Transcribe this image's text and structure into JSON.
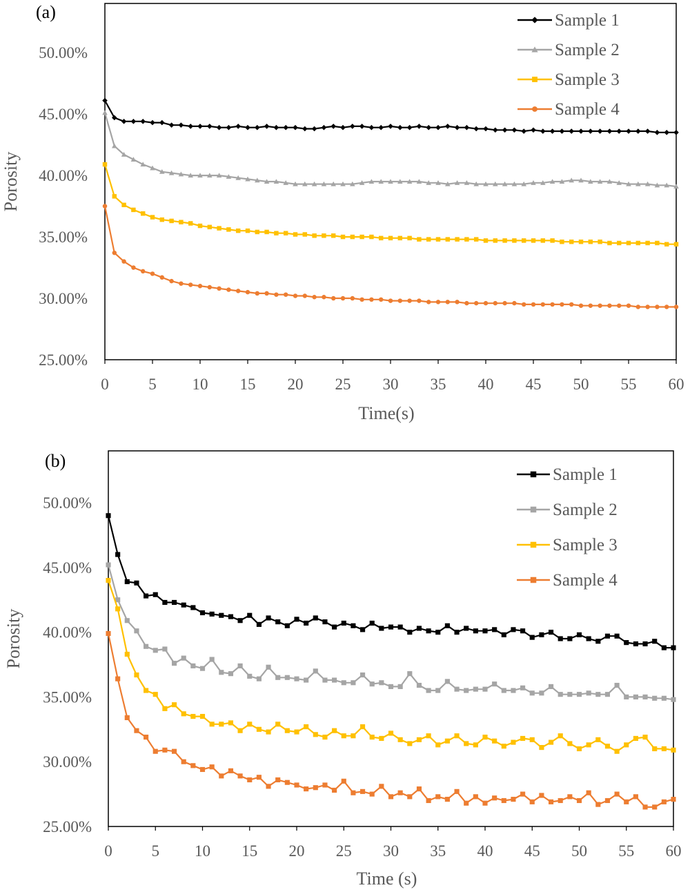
{
  "chart_data": [
    {
      "type": "line",
      "panel_label": "(a)",
      "xlabel": "Time(s)",
      "ylabel": "Porosity",
      "xlim": [
        0,
        60
      ],
      "ylim": [
        0.25,
        0.54
      ],
      "x_ticks": [
        "0",
        "5",
        "10",
        "15",
        "20",
        "25",
        "30",
        "35",
        "40",
        "45",
        "50",
        "55",
        "60"
      ],
      "y_ticks": [
        "25.00%",
        "30.00%",
        "35.00%",
        "40.00%",
        "45.00%",
        "50.00%"
      ],
      "legend_position": "top-right",
      "grid": false,
      "x": [
        0,
        1,
        2,
        3,
        4,
        5,
        6,
        7,
        8,
        9,
        10,
        11,
        12,
        13,
        14,
        15,
        16,
        17,
        18,
        19,
        20,
        21,
        22,
        23,
        24,
        25,
        26,
        27,
        28,
        29,
        30,
        31,
        32,
        33,
        34,
        35,
        36,
        37,
        38,
        39,
        40,
        41,
        42,
        43,
        44,
        45,
        46,
        47,
        48,
        49,
        50,
        51,
        52,
        53,
        54,
        55,
        56,
        57,
        58,
        59,
        60
      ],
      "series": [
        {
          "name": "Sample 1",
          "color": "#000000",
          "marker": "diamond",
          "values": [
            0.461,
            0.447,
            0.444,
            0.444,
            0.444,
            0.443,
            0.443,
            0.441,
            0.441,
            0.44,
            0.44,
            0.44,
            0.439,
            0.439,
            0.44,
            0.439,
            0.439,
            0.44,
            0.439,
            0.439,
            0.439,
            0.438,
            0.438,
            0.439,
            0.44,
            0.439,
            0.44,
            0.44,
            0.439,
            0.439,
            0.44,
            0.439,
            0.439,
            0.44,
            0.439,
            0.439,
            0.44,
            0.439,
            0.439,
            0.438,
            0.438,
            0.437,
            0.437,
            0.437,
            0.436,
            0.437,
            0.436,
            0.436,
            0.436,
            0.436,
            0.436,
            0.436,
            0.436,
            0.436,
            0.436,
            0.436,
            0.436,
            0.436,
            0.435,
            0.435,
            0.435
          ]
        },
        {
          "name": "Sample 2",
          "color": "#a5a5a5",
          "marker": "triangle",
          "values": [
            0.451,
            0.424,
            0.417,
            0.413,
            0.409,
            0.406,
            0.403,
            0.402,
            0.401,
            0.4,
            0.4,
            0.4,
            0.4,
            0.399,
            0.398,
            0.397,
            0.396,
            0.395,
            0.395,
            0.394,
            0.393,
            0.393,
            0.393,
            0.393,
            0.393,
            0.393,
            0.393,
            0.394,
            0.395,
            0.395,
            0.395,
            0.395,
            0.395,
            0.395,
            0.394,
            0.394,
            0.393,
            0.394,
            0.394,
            0.393,
            0.393,
            0.393,
            0.393,
            0.393,
            0.393,
            0.394,
            0.394,
            0.395,
            0.395,
            0.396,
            0.396,
            0.395,
            0.395,
            0.395,
            0.394,
            0.393,
            0.393,
            0.393,
            0.392,
            0.392,
            0.391
          ]
        },
        {
          "name": "Sample 3",
          "color": "#ffc000",
          "marker": "square",
          "values": [
            0.409,
            0.383,
            0.376,
            0.372,
            0.369,
            0.366,
            0.364,
            0.363,
            0.362,
            0.361,
            0.359,
            0.358,
            0.357,
            0.356,
            0.355,
            0.355,
            0.354,
            0.354,
            0.353,
            0.353,
            0.352,
            0.352,
            0.351,
            0.351,
            0.351,
            0.35,
            0.35,
            0.35,
            0.35,
            0.349,
            0.349,
            0.349,
            0.349,
            0.348,
            0.348,
            0.348,
            0.348,
            0.348,
            0.348,
            0.348,
            0.347,
            0.347,
            0.347,
            0.347,
            0.347,
            0.347,
            0.347,
            0.347,
            0.346,
            0.346,
            0.346,
            0.346,
            0.346,
            0.345,
            0.345,
            0.345,
            0.345,
            0.345,
            0.345,
            0.344,
            0.344
          ]
        },
        {
          "name": "Sample 4",
          "color": "#ed7d31",
          "marker": "circle",
          "values": [
            0.375,
            0.337,
            0.33,
            0.325,
            0.322,
            0.32,
            0.317,
            0.314,
            0.312,
            0.311,
            0.31,
            0.309,
            0.308,
            0.307,
            0.306,
            0.305,
            0.304,
            0.304,
            0.303,
            0.303,
            0.302,
            0.302,
            0.301,
            0.301,
            0.3,
            0.3,
            0.3,
            0.299,
            0.299,
            0.299,
            0.298,
            0.298,
            0.298,
            0.298,
            0.297,
            0.297,
            0.297,
            0.297,
            0.296,
            0.296,
            0.296,
            0.296,
            0.296,
            0.296,
            0.295,
            0.295,
            0.295,
            0.295,
            0.295,
            0.295,
            0.294,
            0.294,
            0.294,
            0.294,
            0.294,
            0.294,
            0.293,
            0.293,
            0.293,
            0.293,
            0.293
          ]
        }
      ]
    },
    {
      "type": "line",
      "panel_label": "(b)",
      "xlabel": "Time (s)",
      "ylabel": "Porosity",
      "xlim": [
        0,
        60
      ],
      "ylim": [
        0.25,
        0.54
      ],
      "x_ticks": [
        "0",
        "5",
        "10",
        "15",
        "20",
        "25",
        "30",
        "35",
        "40",
        "45",
        "50",
        "55",
        "60"
      ],
      "y_ticks": [
        "25.00%",
        "30.00%",
        "35.00%",
        "40.00%",
        "45.00%",
        "50.00%"
      ],
      "legend_position": "top-right",
      "grid": false,
      "x": [
        0,
        1,
        2,
        3,
        4,
        5,
        6,
        7,
        8,
        9,
        10,
        11,
        12,
        13,
        14,
        15,
        16,
        17,
        18,
        19,
        20,
        21,
        22,
        23,
        24,
        25,
        26,
        27,
        28,
        29,
        30,
        31,
        32,
        33,
        34,
        35,
        36,
        37,
        38,
        39,
        40,
        41,
        42,
        43,
        44,
        45,
        46,
        47,
        48,
        49,
        50,
        51,
        52,
        53,
        54,
        55,
        56,
        57,
        58,
        59,
        60
      ],
      "series": [
        {
          "name": "Sample 1",
          "color": "#000000",
          "marker": "square",
          "values": [
            0.49,
            0.46,
            0.439,
            0.438,
            0.428,
            0.429,
            0.423,
            0.423,
            0.421,
            0.419,
            0.415,
            0.414,
            0.413,
            0.412,
            0.409,
            0.413,
            0.406,
            0.411,
            0.408,
            0.405,
            0.41,
            0.407,
            0.411,
            0.408,
            0.404,
            0.407,
            0.405,
            0.402,
            0.407,
            0.403,
            0.404,
            0.404,
            0.4,
            0.403,
            0.401,
            0.4,
            0.405,
            0.4,
            0.403,
            0.401,
            0.401,
            0.402,
            0.398,
            0.402,
            0.401,
            0.396,
            0.398,
            0.4,
            0.395,
            0.395,
            0.398,
            0.395,
            0.393,
            0.397,
            0.397,
            0.392,
            0.391,
            0.391,
            0.393,
            0.388,
            0.388
          ]
        },
        {
          "name": "Sample 2",
          "color": "#a5a5a5",
          "marker": "square",
          "values": [
            0.452,
            0.425,
            0.409,
            0.401,
            0.389,
            0.386,
            0.387,
            0.376,
            0.38,
            0.374,
            0.372,
            0.379,
            0.369,
            0.368,
            0.374,
            0.366,
            0.364,
            0.373,
            0.365,
            0.365,
            0.364,
            0.363,
            0.37,
            0.363,
            0.363,
            0.361,
            0.361,
            0.367,
            0.36,
            0.361,
            0.358,
            0.358,
            0.368,
            0.359,
            0.355,
            0.355,
            0.362,
            0.356,
            0.355,
            0.356,
            0.356,
            0.36,
            0.355,
            0.355,
            0.357,
            0.353,
            0.353,
            0.358,
            0.352,
            0.352,
            0.352,
            0.353,
            0.352,
            0.352,
            0.359,
            0.35,
            0.35,
            0.35,
            0.349,
            0.349,
            0.348
          ]
        },
        {
          "name": "Sample 3",
          "color": "#ffc000",
          "marker": "square",
          "values": [
            0.44,
            0.418,
            0.383,
            0.367,
            0.355,
            0.352,
            0.341,
            0.344,
            0.337,
            0.335,
            0.335,
            0.329,
            0.329,
            0.33,
            0.324,
            0.329,
            0.325,
            0.323,
            0.329,
            0.324,
            0.323,
            0.327,
            0.321,
            0.319,
            0.324,
            0.32,
            0.32,
            0.327,
            0.319,
            0.318,
            0.322,
            0.317,
            0.314,
            0.317,
            0.32,
            0.313,
            0.316,
            0.32,
            0.314,
            0.313,
            0.319,
            0.316,
            0.312,
            0.315,
            0.318,
            0.317,
            0.311,
            0.315,
            0.32,
            0.314,
            0.31,
            0.313,
            0.317,
            0.312,
            0.308,
            0.313,
            0.318,
            0.319,
            0.31,
            0.31,
            0.309
          ]
        },
        {
          "name": "Sample 4",
          "color": "#ed7d31",
          "marker": "square",
          "values": [
            0.399,
            0.364,
            0.334,
            0.324,
            0.319,
            0.308,
            0.309,
            0.308,
            0.3,
            0.297,
            0.294,
            0.296,
            0.289,
            0.293,
            0.289,
            0.286,
            0.288,
            0.281,
            0.286,
            0.284,
            0.282,
            0.279,
            0.28,
            0.282,
            0.278,
            0.285,
            0.276,
            0.277,
            0.275,
            0.281,
            0.273,
            0.276,
            0.273,
            0.279,
            0.27,
            0.273,
            0.271,
            0.277,
            0.268,
            0.273,
            0.268,
            0.272,
            0.27,
            0.271,
            0.275,
            0.269,
            0.274,
            0.269,
            0.27,
            0.273,
            0.27,
            0.276,
            0.267,
            0.27,
            0.275,
            0.269,
            0.273,
            0.265,
            0.265,
            0.269,
            0.271
          ]
        }
      ]
    }
  ]
}
